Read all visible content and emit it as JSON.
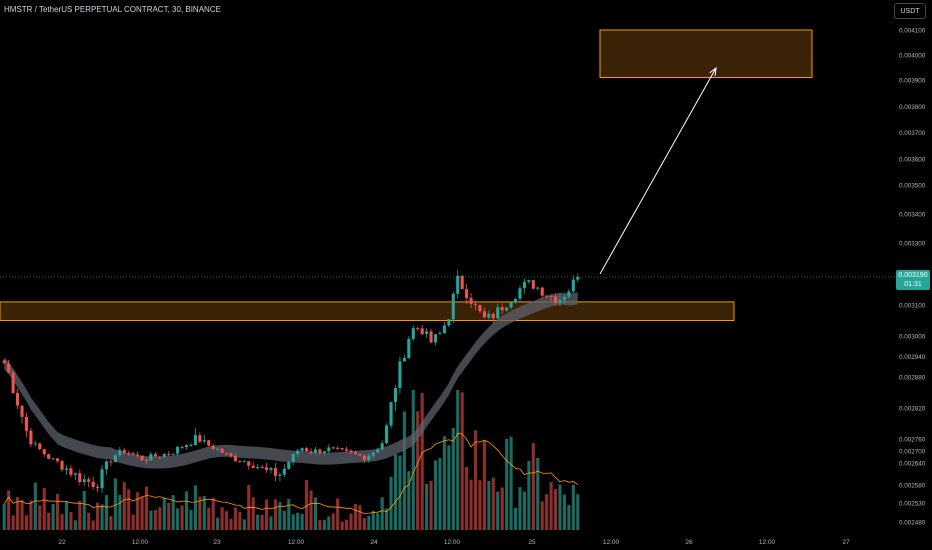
{
  "header": {
    "symbol": "HMSTR / TetherUS PERPETUAL CONTRACT, 30, BINANCE",
    "currency": "USDT"
  },
  "price_badge": {
    "price": "0.003190",
    "countdown": "01:31"
  },
  "colors": {
    "up": "#26a69a",
    "down": "#ef5350",
    "zone": "#ff9800",
    "zone_fill": "#3a2206",
    "ma_band": "#5d606b",
    "vol_ma": "#ff9800",
    "arrow": "#ffffff"
  },
  "chart_data": {
    "type": "candlestick",
    "y_axis": {
      "labels": [
        "0.004100",
        "0.004000",
        "0.003900",
        "0.003800",
        "0.003700",
        "0.003600",
        "0.003500",
        "0.003400",
        "0.003300",
        "0.003100",
        "0.003000",
        "0.002940",
        "0.002880",
        "0.002820",
        "0.002760",
        "0.002700",
        "0.002640",
        "0.002580",
        "0.002530",
        "0.002480"
      ],
      "scale": "log"
    },
    "x_axis": {
      "labels": [
        "22",
        "12:00",
        "23",
        "12:00",
        "24",
        "12:00",
        "25",
        "12:00",
        "26",
        "12:00",
        "27"
      ]
    },
    "last_price": 0.00319,
    "support_zone": {
      "from": 0.00305,
      "to": 0.00311
    },
    "target_zone": {
      "from": 0.00391,
      "to": 0.00413
    },
    "price_path": [
      0.00292,
      0.00286,
      0.0028,
      0.00274,
      0.0027,
      0.00266,
      0.00264,
      0.00262,
      0.0026,
      0.00259,
      0.00258,
      0.00263,
      0.00268,
      0.0027,
      0.00268,
      0.00266,
      0.00267,
      0.00268,
      0.00269,
      0.00272,
      0.00274,
      0.00276,
      0.00273,
      0.00271,
      0.00268,
      0.00266,
      0.00265,
      0.00264,
      0.00262,
      0.00261,
      0.00261,
      0.00266,
      0.00272,
      0.0027,
      0.0027,
      0.00271,
      0.0027,
      0.00269,
      0.00268,
      0.00267,
      0.0027,
      0.00275,
      0.00284,
      0.00293,
      0.00302,
      0.00303,
      0.00298,
      0.003,
      0.00306,
      0.00318,
      0.00314,
      0.00309,
      0.00305,
      0.00307,
      0.0031,
      0.00313,
      0.00316,
      0.00317,
      0.00315,
      0.00313,
      0.00312,
      0.00315,
      0.00319
    ],
    "volume_path": [
      0.25,
      0.3,
      0.2,
      0.35,
      0.3,
      0.25,
      0.3,
      0.22,
      0.28,
      0.2,
      0.25,
      0.3,
      0.35,
      0.28,
      0.22,
      0.26,
      0.24,
      0.2,
      0.22,
      0.26,
      0.3,
      0.28,
      0.25,
      0.22,
      0.2,
      0.24,
      0.26,
      0.2,
      0.18,
      0.22,
      0.2,
      0.28,
      0.35,
      0.25,
      0.22,
      0.2,
      0.18,
      0.22,
      0.2,
      0.18,
      0.3,
      0.45,
      0.55,
      0.7,
      0.9,
      1.0,
      0.8,
      0.65,
      0.7,
      0.85,
      0.75,
      0.6,
      0.55,
      0.5,
      0.55,
      0.5,
      0.45,
      0.5,
      0.4,
      0.35,
      0.3,
      0.3,
      0.25
    ],
    "legend": null
  }
}
